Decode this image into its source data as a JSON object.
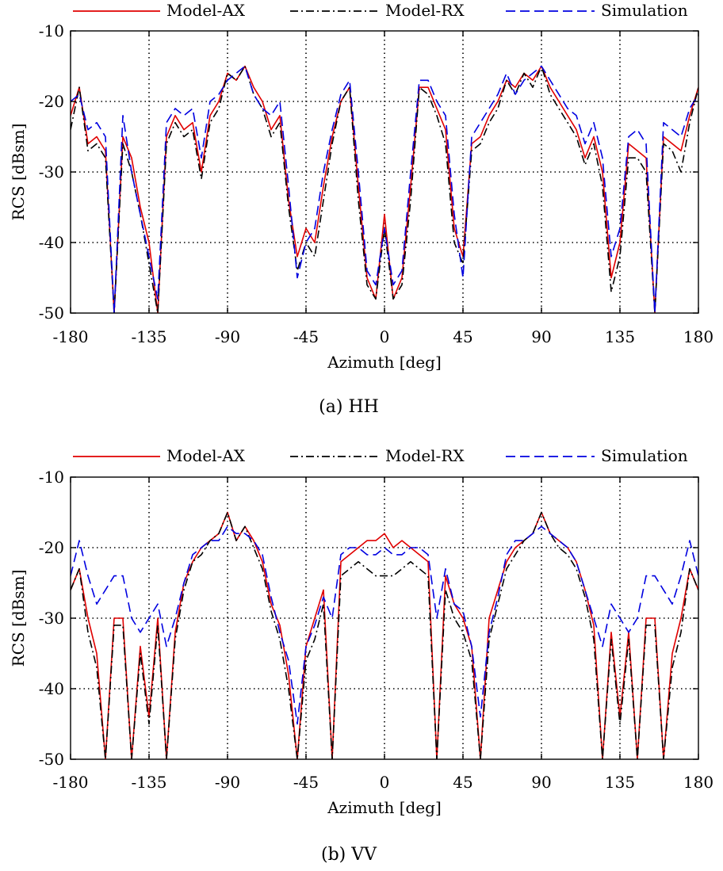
{
  "legend": {
    "model_ax": "Model-AX",
    "model_rx": "Model-RX",
    "simulation": "Simulation"
  },
  "colors": {
    "model_ax": "#e00000",
    "model_rx": "#000000",
    "simulation": "#0000e0"
  },
  "chart_data": [
    {
      "type": "line",
      "caption": "(a) HH",
      "xlabel": "Azimuth [deg]",
      "ylabel": "RCS [dBsm]",
      "xlim": [
        -180,
        180
      ],
      "ylim": [
        -50,
        -10
      ],
      "xticks": [
        -180,
        -135,
        -90,
        -45,
        0,
        45,
        90,
        135,
        180
      ],
      "xtick_labels": [
        "-180",
        "-135",
        "-90",
        "-45",
        "0",
        "45",
        "90",
        "135",
        "180"
      ],
      "yticks": [
        -50,
        -40,
        -30,
        -20,
        -10
      ],
      "ytick_labels": [
        "-50",
        "-40",
        "-30",
        "-20",
        "-10"
      ],
      "grid": true,
      "legend_position": "top",
      "x": [
        -180,
        -175,
        -170,
        -165,
        -160,
        -155,
        -150,
        -145,
        -140,
        -135,
        -130,
        -125,
        -120,
        -115,
        -110,
        -105,
        -100,
        -95,
        -90,
        -85,
        -80,
        -75,
        -70,
        -65,
        -60,
        -55,
        -50,
        -45,
        -40,
        -35,
        -30,
        -25,
        -20,
        -15,
        -10,
        -5,
        0,
        5,
        10,
        15,
        20,
        25,
        30,
        35,
        40,
        45,
        50,
        55,
        60,
        65,
        70,
        75,
        80,
        85,
        90,
        95,
        100,
        105,
        110,
        115,
        120,
        125,
        130,
        135,
        140,
        145,
        150,
        155,
        160,
        165,
        170,
        175,
        180
      ],
      "series": [
        {
          "name": "Model-AX",
          "key": "model_ax",
          "dash": "",
          "values": [
            -22,
            -18,
            -26,
            -25,
            -27,
            -50,
            -25,
            -28,
            -35,
            -40,
            -50,
            -25,
            -22,
            -24,
            -23,
            -30,
            -22,
            -20,
            -16,
            -17,
            -15,
            -18,
            -20,
            -24,
            -22,
            -34,
            -42,
            -38,
            -40,
            -32,
            -25,
            -20,
            -18,
            -32,
            -45,
            -48,
            -36,
            -48,
            -45,
            -32,
            -18,
            -18,
            -21,
            -24,
            -38,
            -42,
            -26,
            -25,
            -22,
            -20,
            -17,
            -18,
            -16,
            -17,
            -15,
            -18,
            -20,
            -22,
            -24,
            -28,
            -25,
            -30,
            -45,
            -40,
            -26,
            -27,
            -28,
            -50,
            -25,
            -26,
            -27,
            -22,
            -18
          ]
        },
        {
          "name": "Model-RX",
          "key": "model_rx",
          "dash": "10,4,2,4",
          "values": [
            -24,
            -18,
            -27,
            -26,
            -28,
            -50,
            -26,
            -30,
            -36,
            -43,
            -50,
            -26,
            -23,
            -25,
            -24,
            -31,
            -23,
            -21,
            -16,
            -17,
            -15,
            -19,
            -21,
            -25,
            -23,
            -35,
            -44,
            -40,
            -42,
            -34,
            -26,
            -20,
            -18,
            -34,
            -46,
            -48,
            -38,
            -48,
            -46,
            -34,
            -18,
            -19,
            -22,
            -26,
            -40,
            -43,
            -27,
            -26,
            -23,
            -21,
            -17,
            -19,
            -16,
            -18,
            -15,
            -19,
            -21,
            -23,
            -25,
            -29,
            -26,
            -32,
            -47,
            -42,
            -28,
            -28,
            -30,
            -50,
            -26,
            -27,
            -30,
            -23,
            -18
          ]
        },
        {
          "name": "Simulation",
          "key": "simulation",
          "dash": "12,6",
          "values": [
            -20,
            -19,
            -24,
            -23,
            -25,
            -50,
            -22,
            -30,
            -36,
            -42,
            -48,
            -23,
            -21,
            -22,
            -21,
            -28,
            -20,
            -19,
            -17,
            -16,
            -15,
            -19,
            -21,
            -22,
            -20,
            -32,
            -45,
            -40,
            -38,
            -30,
            -24,
            -19,
            -17,
            -30,
            -44,
            -46,
            -38,
            -46,
            -44,
            -30,
            -17,
            -17,
            -20,
            -22,
            -36,
            -45,
            -25,
            -23,
            -21,
            -19,
            -16,
            -19,
            -17,
            -16,
            -15,
            -17,
            -19,
            -21,
            -22,
            -26,
            -23,
            -28,
            -42,
            -38,
            -25,
            -24,
            -26,
            -50,
            -23,
            -24,
            -25,
            -21,
            -19
          ]
        }
      ]
    },
    {
      "type": "line",
      "caption": "(b) VV",
      "xlabel": "Azimuth [deg]",
      "ylabel": "RCS [dBsm]",
      "xlim": [
        -180,
        180
      ],
      "ylim": [
        -50,
        -10
      ],
      "xticks": [
        -180,
        -135,
        -90,
        -45,
        0,
        45,
        90,
        135,
        180
      ],
      "xtick_labels": [
        "-180",
        "-135",
        "-90",
        "-45",
        "0",
        "45",
        "90",
        "135",
        "180"
      ],
      "yticks": [
        -50,
        -40,
        -30,
        -20,
        -10
      ],
      "ytick_labels": [
        "-50",
        "-40",
        "-30",
        "-20",
        "-10"
      ],
      "grid": true,
      "legend_position": "top",
      "x": [
        -180,
        -175,
        -170,
        -165,
        -160,
        -155,
        -150,
        -145,
        -140,
        -135,
        -130,
        -125,
        -120,
        -115,
        -110,
        -105,
        -100,
        -95,
        -90,
        -85,
        -80,
        -75,
        -70,
        -65,
        -60,
        -55,
        -50,
        -45,
        -40,
        -35,
        -30,
        -25,
        -20,
        -15,
        -10,
        -5,
        0,
        5,
        10,
        15,
        20,
        25,
        30,
        35,
        40,
        45,
        50,
        55,
        60,
        65,
        70,
        75,
        80,
        85,
        90,
        95,
        100,
        105,
        110,
        115,
        120,
        125,
        130,
        135,
        140,
        145,
        150,
        155,
        160,
        165,
        170,
        175,
        180
      ],
      "series": [
        {
          "name": "Model-AX",
          "key": "model_ax",
          "dash": "",
          "values": [
            -26,
            -23,
            -30,
            -35,
            -50,
            -30,
            -30,
            -50,
            -34,
            -44,
            -30,
            -50,
            -32,
            -25,
            -22,
            -20,
            -19,
            -18,
            -15,
            -19,
            -17,
            -19,
            -22,
            -28,
            -31,
            -38,
            -50,
            -34,
            -30,
            -26,
            -50,
            -22,
            -21,
            -20,
            -19,
            -19,
            -18,
            -20,
            -19,
            -20,
            -21,
            -22,
            -50,
            -24,
            -28,
            -30,
            -34,
            -50,
            -30,
            -26,
            -22,
            -20,
            -19,
            -18,
            -15,
            -18,
            -19,
            -20,
            -22,
            -26,
            -31,
            -50,
            -32,
            -44,
            -32,
            -50,
            -30,
            -30,
            -50,
            -35,
            -30,
            -23,
            -26
          ]
        },
        {
          "name": "Model-RX",
          "key": "model_rx",
          "dash": "10,4,2,4",
          "values": [
            -26,
            -23,
            -32,
            -37,
            -50,
            -31,
            -31,
            -50,
            -35,
            -45,
            -31,
            -50,
            -33,
            -26,
            -22,
            -21,
            -19,
            -18,
            -15,
            -19,
            -17,
            -20,
            -23,
            -29,
            -33,
            -40,
            -50,
            -36,
            -33,
            -28,
            -50,
            -24,
            -23,
            -22,
            -23,
            -24,
            -24,
            -24,
            -23,
            -22,
            -23,
            -24,
            -50,
            -26,
            -30,
            -32,
            -36,
            -50,
            -33,
            -28,
            -23,
            -21,
            -19,
            -18,
            -15,
            -18,
            -20,
            -21,
            -23,
            -27,
            -33,
            -50,
            -33,
            -45,
            -33,
            -50,
            -31,
            -31,
            -50,
            -37,
            -32,
            -23,
            -26
          ]
        },
        {
          "name": "Simulation",
          "key": "simulation",
          "dash": "12,6",
          "values": [
            -24,
            -19,
            -24,
            -28,
            -26,
            -24,
            -24,
            -30,
            -32,
            -30,
            -28,
            -34,
            -30,
            -25,
            -21,
            -20,
            -19,
            -19,
            -17,
            -18,
            -18,
            -19,
            -21,
            -27,
            -32,
            -36,
            -45,
            -34,
            -31,
            -27,
            -30,
            -21,
            -20,
            -20,
            -21,
            -21,
            -20,
            -21,
            -21,
            -20,
            -20,
            -21,
            -30,
            -23,
            -28,
            -29,
            -34,
            -44,
            -32,
            -27,
            -21,
            -19,
            -19,
            -18,
            -17,
            -18,
            -19,
            -20,
            -22,
            -26,
            -30,
            -34,
            -28,
            -30,
            -32,
            -30,
            -24,
            -24,
            -26,
            -28,
            -24,
            -19,
            -24
          ]
        }
      ]
    }
  ]
}
